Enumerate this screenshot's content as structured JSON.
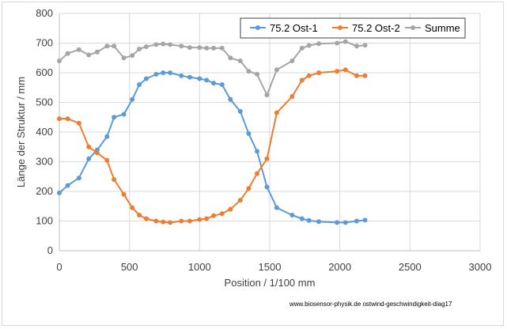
{
  "chart_data": {
    "type": "line",
    "title": "",
    "xlabel": "Position  /  1/100 mm",
    "ylabel": "Länge der Struktur / mm",
    "xlim": [
      0,
      3000
    ],
    "ylim": [
      0,
      800
    ],
    "xticks": [
      0,
      500,
      1000,
      1500,
      2000,
      2500,
      3000
    ],
    "yticks": [
      0,
      100,
      200,
      300,
      400,
      500,
      600,
      700,
      800
    ],
    "grid": true,
    "legend_position": "top-right",
    "series": [
      {
        "name": "75.2 Ost-1",
        "color": "#5b9bd5",
        "points": [
          [
            0,
            195
          ],
          [
            60,
            220
          ],
          [
            140,
            245
          ],
          [
            210,
            310
          ],
          [
            270,
            340
          ],
          [
            340,
            385
          ],
          [
            390,
            450
          ],
          [
            460,
            460
          ],
          [
            520,
            510
          ],
          [
            570,
            560
          ],
          [
            620,
            580
          ],
          [
            690,
            595
          ],
          [
            740,
            600
          ],
          [
            790,
            600
          ],
          [
            870,
            590
          ],
          [
            930,
            585
          ],
          [
            1000,
            580
          ],
          [
            1050,
            575
          ],
          [
            1100,
            565
          ],
          [
            1160,
            560
          ],
          [
            1220,
            510
          ],
          [
            1290,
            470
          ],
          [
            1350,
            395
          ],
          [
            1410,
            335
          ],
          [
            1480,
            215
          ],
          [
            1550,
            145
          ],
          [
            1660,
            120
          ],
          [
            1730,
            108
          ],
          [
            1780,
            102
          ],
          [
            1850,
            98
          ],
          [
            1980,
            95
          ],
          [
            2040,
            95
          ],
          [
            2120,
            100
          ],
          [
            2180,
            103
          ]
        ]
      },
      {
        "name": "75.2 Ost-2",
        "color": "#ed7d31",
        "points": [
          [
            0,
            445
          ],
          [
            60,
            445
          ],
          [
            140,
            430
          ],
          [
            210,
            350
          ],
          [
            270,
            330
          ],
          [
            340,
            305
          ],
          [
            390,
            240
          ],
          [
            460,
            190
          ],
          [
            520,
            145
          ],
          [
            570,
            120
          ],
          [
            620,
            108
          ],
          [
            690,
            100
          ],
          [
            740,
            97
          ],
          [
            790,
            95
          ],
          [
            870,
            100
          ],
          [
            930,
            100
          ],
          [
            1000,
            105
          ],
          [
            1050,
            108
          ],
          [
            1100,
            118
          ],
          [
            1160,
            125
          ],
          [
            1220,
            140
          ],
          [
            1290,
            170
          ],
          [
            1350,
            210
          ],
          [
            1410,
            260
          ],
          [
            1480,
            310
          ],
          [
            1550,
            465
          ],
          [
            1660,
            520
          ],
          [
            1730,
            575
          ],
          [
            1780,
            590
          ],
          [
            1850,
            600
          ],
          [
            1980,
            605
          ],
          [
            2040,
            610
          ],
          [
            2120,
            590
          ],
          [
            2180,
            590
          ]
        ]
      },
      {
        "name": "Summe",
        "color": "#a5a5a5",
        "points": [
          [
            0,
            640
          ],
          [
            60,
            665
          ],
          [
            140,
            678
          ],
          [
            210,
            660
          ],
          [
            270,
            670
          ],
          [
            340,
            690
          ],
          [
            390,
            690
          ],
          [
            460,
            650
          ],
          [
            520,
            658
          ],
          [
            570,
            680
          ],
          [
            620,
            688
          ],
          [
            690,
            695
          ],
          [
            740,
            697
          ],
          [
            790,
            695
          ],
          [
            870,
            690
          ],
          [
            930,
            685
          ],
          [
            1000,
            685
          ],
          [
            1050,
            683
          ],
          [
            1100,
            683
          ],
          [
            1160,
            683
          ],
          [
            1220,
            650
          ],
          [
            1290,
            640
          ],
          [
            1350,
            605
          ],
          [
            1410,
            595
          ],
          [
            1480,
            525
          ],
          [
            1550,
            610
          ],
          [
            1660,
            640
          ],
          [
            1730,
            683
          ],
          [
            1780,
            692
          ],
          [
            1850,
            698
          ],
          [
            1980,
            700
          ],
          [
            2040,
            705
          ],
          [
            2120,
            690
          ],
          [
            2180,
            693
          ]
        ]
      }
    ]
  },
  "footer_text": "www.biosensor-physik.de  ostwind-geschwindigkeit-diag17"
}
